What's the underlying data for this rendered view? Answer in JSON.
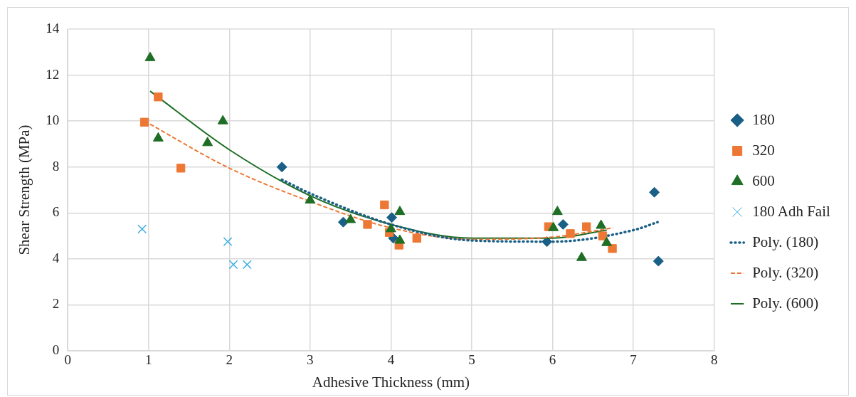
{
  "chart_data": {
    "type": "scatter",
    "xlabel": "Adhesive Thickness (mm)",
    "ylabel": "Shear Strength (MPa)",
    "xlim": [
      0,
      8
    ],
    "xticks": [
      0,
      1,
      2,
      3,
      4,
      5,
      6,
      7,
      8
    ],
    "ylim": [
      0,
      14
    ],
    "yticks": [
      0,
      2,
      4,
      6,
      8,
      10,
      12,
      14
    ],
    "grid": true,
    "legend": "right",
    "series": [
      {
        "name": "180",
        "type": "scatter",
        "marker": "diamond",
        "color": "#1a5f86",
        "x": [
          2.65,
          3.41,
          4.01,
          4.03,
          5.93,
          6.13,
          7.26,
          7.31
        ],
        "values": [
          8.0,
          5.6,
          5.8,
          4.9,
          4.75,
          5.5,
          6.9,
          3.9
        ]
      },
      {
        "name": "320",
        "type": "scatter",
        "marker": "square",
        "color": "#ed7734",
        "x": [
          0.95,
          1.12,
          1.4,
          3.71,
          3.92,
          3.98,
          4.1,
          4.32,
          5.95,
          6.22,
          6.42,
          6.62,
          6.74
        ],
        "values": [
          9.95,
          11.05,
          7.95,
          5.5,
          6.35,
          5.15,
          4.6,
          4.9,
          5.4,
          5.1,
          5.4,
          5.0,
          4.45
        ]
      },
      {
        "name": "600",
        "type": "scatter",
        "marker": "triangle",
        "color": "#1e6e25",
        "x": [
          1.02,
          1.12,
          1.73,
          1.92,
          3.0,
          3.5,
          4.0,
          4.11,
          4.11,
          6.01,
          6.06,
          6.36,
          6.6,
          6.67
        ],
        "values": [
          12.75,
          9.25,
          9.05,
          10.0,
          6.55,
          5.7,
          5.3,
          6.05,
          4.8,
          5.35,
          6.05,
          4.05,
          5.45,
          4.7
        ]
      },
      {
        "name": "180 Adh Fail",
        "type": "scatter",
        "marker": "cross",
        "color": "#3aaee0",
        "x": [
          0.92,
          1.98,
          2.05,
          2.22
        ],
        "values": [
          5.3,
          4.75,
          3.75,
          3.75
        ]
      },
      {
        "name": "Poly. (180)",
        "type": "line",
        "marker": "none",
        "line_style": "dotted",
        "color": "#1a5f86",
        "x": [
          2.65,
          3,
          4,
          5,
          6,
          7,
          7.3
        ],
        "values": [
          7.45,
          6.85,
          5.5,
          4.8,
          4.75,
          5.25,
          5.6
        ]
      },
      {
        "name": "Poly. (320)",
        "type": "line",
        "marker": "none",
        "line_style": "dashed",
        "color": "#ed7734",
        "x": [
          0.95,
          2,
          3,
          4,
          5,
          6,
          6.75
        ],
        "values": [
          10.0,
          7.95,
          6.5,
          5.35,
          4.85,
          4.95,
          5.35
        ]
      },
      {
        "name": "Poly. (600)",
        "type": "line",
        "marker": "none",
        "line_style": "solid",
        "color": "#1e6e25",
        "x": [
          1.02,
          2,
          3,
          4,
          5,
          6,
          6.67
        ],
        "values": [
          11.3,
          8.75,
          6.75,
          5.5,
          4.9,
          4.9,
          5.25
        ]
      }
    ]
  }
}
